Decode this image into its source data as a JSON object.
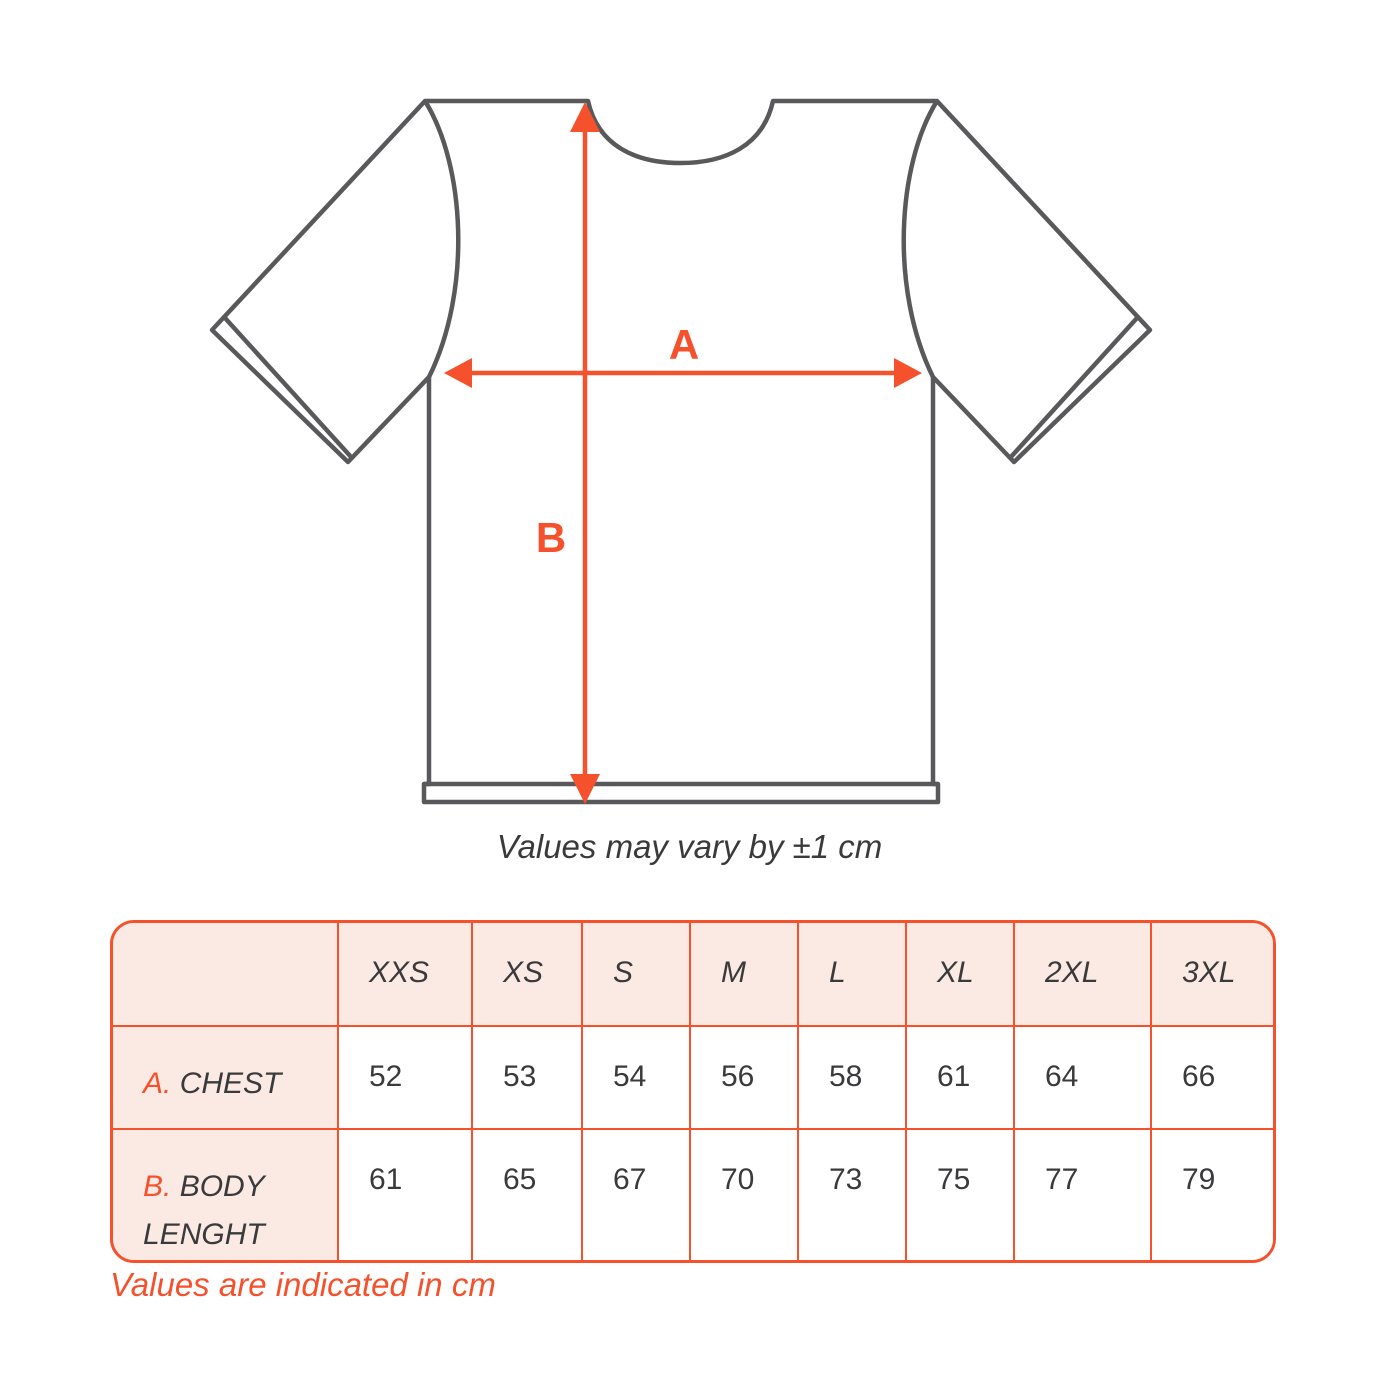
{
  "diagram": {
    "label_a": "A",
    "label_b": "B",
    "tolerance_note": "Values may vary by ±1 cm"
  },
  "table": {
    "sizes": [
      "XXS",
      "XS",
      "S",
      "M",
      "L",
      "XL",
      "2XL",
      "3XL"
    ],
    "rows": [
      {
        "prefix": "A.",
        "label": "CHEST",
        "values": [
          "52",
          "53",
          "54",
          "56",
          "58",
          "61",
          "64",
          "66"
        ]
      },
      {
        "prefix": "B.",
        "label": "BODY LENGHT",
        "values": [
          "61",
          "65",
          "67",
          "70",
          "73",
          "75",
          "77",
          "79"
        ]
      }
    ],
    "footnote": "Values are indicated in cm"
  },
  "colors": {
    "accent": "#F4512C",
    "header_fill": "#FBEAE3",
    "shirt_outline": "#59595B",
    "text": "#3A3A3C"
  }
}
